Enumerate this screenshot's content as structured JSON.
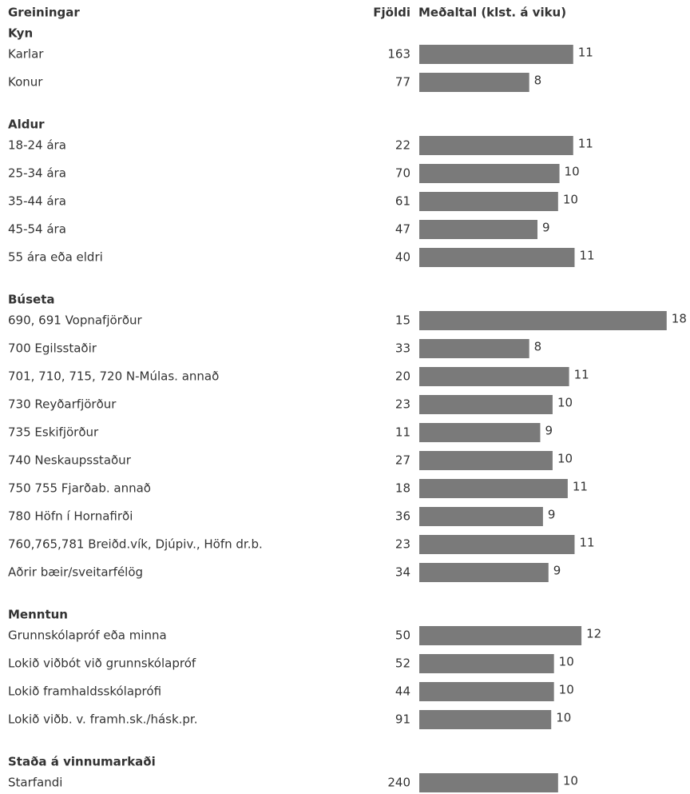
{
  "chart_data": {
    "type": "bar",
    "color": "#7a7a7a",
    "label_header": "Greiningar",
    "count_header": "Fjöldi",
    "value_header": "Meðaltal (klst. á viku)",
    "xlim": [
      0,
      19
    ],
    "groups": [
      {
        "name": "Kyn",
        "rows": [
          {
            "label": "Karlar",
            "count": 163,
            "value": 11.2,
            "value_label": "11"
          },
          {
            "label": "Konur",
            "count": 77,
            "value": 8.0,
            "value_label": "8"
          }
        ]
      },
      {
        "name": "Aldur",
        "rows": [
          {
            "label": "18-24 ára",
            "count": 22,
            "value": 11.2,
            "value_label": "11"
          },
          {
            "label": "25-34 ára",
            "count": 70,
            "value": 10.2,
            "value_label": "10"
          },
          {
            "label": "35-44 ára",
            "count": 61,
            "value": 10.1,
            "value_label": "10"
          },
          {
            "label": "45-54 ára",
            "count": 47,
            "value": 8.6,
            "value_label": "9"
          },
          {
            "label": "55 ára eða eldri",
            "count": 40,
            "value": 11.3,
            "value_label": "11"
          }
        ]
      },
      {
        "name": "Búseta",
        "rows": [
          {
            "label": "690, 691 Vopnafjörður",
            "count": 15,
            "value": 18.0,
            "value_label": "18"
          },
          {
            "label": "700 Egilsstaðir",
            "count": 33,
            "value": 8.0,
            "value_label": "8"
          },
          {
            "label": "701, 710, 715, 720 N-Múlas. annað",
            "count": 20,
            "value": 10.9,
            "value_label": "11"
          },
          {
            "label": "730 Reyðarfjörður",
            "count": 23,
            "value": 9.7,
            "value_label": "10"
          },
          {
            "label": "735 Eskifjörður",
            "count": 11,
            "value": 8.8,
            "value_label": "9"
          },
          {
            "label": "740 Neskaupsstaður",
            "count": 27,
            "value": 9.7,
            "value_label": "10"
          },
          {
            "label": "750 755 Fjarðab. annað",
            "count": 18,
            "value": 10.8,
            "value_label": "11"
          },
          {
            "label": "780 Höfn í Hornafirði",
            "count": 36,
            "value": 9.0,
            "value_label": "9"
          },
          {
            "label": "760,765,781 Breiðd.vík, Djúpiv., Höfn dr.b.",
            "count": 23,
            "value": 11.3,
            "value_label": "11"
          },
          {
            "label": "Aðrir bæir/sveitarfélög",
            "count": 34,
            "value": 9.4,
            "value_label": "9"
          }
        ]
      },
      {
        "name": "Menntun",
        "rows": [
          {
            "label": "Grunnskólapróf eða minna",
            "count": 50,
            "value": 11.8,
            "value_label": "12"
          },
          {
            "label": "Lokið viðbót við grunnskólapróf",
            "count": 52,
            "value": 9.8,
            "value_label": "10"
          },
          {
            "label": "Lokið framhaldsskólaprófi",
            "count": 44,
            "value": 9.8,
            "value_label": "10"
          },
          {
            "label": "Lokið viðb. v. framh.sk./hásk.pr.",
            "count": 91,
            "value": 9.6,
            "value_label": "10"
          }
        ]
      },
      {
        "name": "Staða á vinnumarkaði",
        "rows": [
          {
            "label": "Starfandi",
            "count": 240,
            "value": 10.1,
            "value_label": "10"
          }
        ]
      }
    ]
  }
}
